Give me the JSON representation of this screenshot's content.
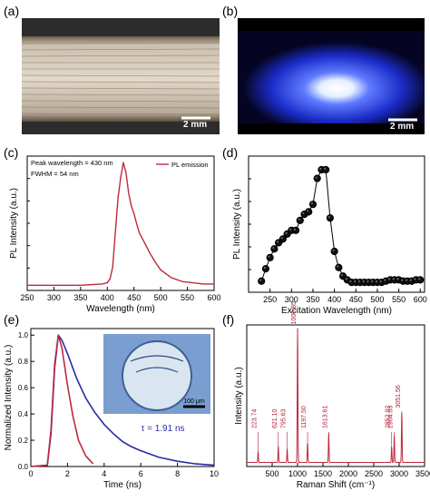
{
  "panel_labels": [
    "(a)",
    "(b)",
    "(c)",
    "(d)",
    "(e)",
    "(f)"
  ],
  "photo_a": {
    "scale_bar": "2 mm"
  },
  "photo_b": {
    "scale_bar": "2 mm"
  },
  "colors": {
    "red": "#c0283c",
    "blue": "#2a2aa8",
    "black": "#000000",
    "raman_label": "#b0203a"
  },
  "chart_data": [
    {
      "panel": "c",
      "type": "line",
      "xlabel": "Wavelength (nm)",
      "ylabel": "PL Intensity (a.u.)",
      "xlim": [
        250,
        600
      ],
      "xticks": [
        250,
        300,
        350,
        400,
        450,
        500,
        550,
        600
      ],
      "ylim": [
        0,
        1.05
      ],
      "annotations": [
        "Peak wavelength = 430 nm",
        "FWHM = 54 nm"
      ],
      "legend": "PL emission",
      "legend_position": "top-right",
      "series": [
        {
          "name": "PL emission",
          "color": "#c0283c",
          "x": [
            250,
            300,
            350,
            390,
            400,
            405,
            410,
            415,
            420,
            425,
            430,
            435,
            440,
            445,
            450,
            455,
            460,
            470,
            480,
            490,
            500,
            520,
            540,
            560,
            580,
            600
          ],
          "y": [
            0.04,
            0.04,
            0.04,
            0.05,
            0.06,
            0.09,
            0.18,
            0.45,
            0.72,
            0.88,
            1.0,
            0.92,
            0.76,
            0.66,
            0.6,
            0.52,
            0.45,
            0.37,
            0.29,
            0.22,
            0.16,
            0.1,
            0.07,
            0.06,
            0.05,
            0.05
          ]
        }
      ]
    },
    {
      "panel": "d",
      "type": "scatter",
      "xlabel": "Excitation Wavelength (nm)",
      "ylabel": "PL Intensity (a.u.)",
      "xlim": [
        200,
        610
      ],
      "xticks": [
        250,
        300,
        350,
        400,
        450,
        500,
        550,
        600
      ],
      "ylim": [
        0,
        1.1
      ],
      "series": [
        {
          "color": "#000000",
          "x": [
            230,
            240,
            250,
            260,
            270,
            280,
            290,
            300,
            310,
            320,
            330,
            340,
            350,
            360,
            370,
            380,
            390,
            400,
            410,
            420,
            430,
            440,
            450,
            460,
            470,
            480,
            490,
            500,
            510,
            520,
            530,
            540,
            550,
            560,
            570,
            580,
            590,
            600
          ],
          "y": [
            0.09,
            0.19,
            0.28,
            0.35,
            0.4,
            0.43,
            0.47,
            0.5,
            0.5,
            0.58,
            0.63,
            0.65,
            0.71,
            0.92,
            0.99,
            0.99,
            0.6,
            0.33,
            0.2,
            0.13,
            0.1,
            0.08,
            0.08,
            0.08,
            0.08,
            0.08,
            0.08,
            0.08,
            0.08,
            0.09,
            0.1,
            0.1,
            0.1,
            0.09,
            0.09,
            0.09,
            0.1,
            0.1
          ]
        }
      ]
    },
    {
      "panel": "e",
      "type": "line",
      "xlabel": "Time (ns)",
      "ylabel": "Normalized Intensity (a.u.)",
      "xlim": [
        0,
        10
      ],
      "xticks": [
        0,
        2,
        4,
        6,
        8,
        10
      ],
      "ylim": [
        0,
        1.05
      ],
      "yticks": [
        0.0,
        0.2,
        0.4,
        0.6,
        0.8,
        1.0
      ],
      "annotation": "τ = 1.91 ns",
      "inset_scale_bar": "100 μm",
      "series": [
        {
          "color": "#2a2aa8",
          "x": [
            0,
            0.9,
            1.1,
            1.3,
            1.5,
            1.7,
            2.0,
            2.5,
            3.0,
            3.5,
            4.0,
            4.5,
            5.0,
            5.5,
            6.0,
            7.0,
            8.0,
            9.0,
            10.0
          ],
          "y": [
            0,
            0.01,
            0.25,
            0.75,
            1.0,
            0.96,
            0.86,
            0.67,
            0.52,
            0.41,
            0.32,
            0.25,
            0.19,
            0.15,
            0.12,
            0.07,
            0.04,
            0.02,
            0.01
          ]
        },
        {
          "color": "#c0283c",
          "x": [
            0,
            0.9,
            1.1,
            1.3,
            1.5,
            1.7,
            2.0,
            2.3,
            2.6,
            3.0,
            3.4
          ],
          "y": [
            0,
            0.01,
            0.28,
            0.78,
            1.0,
            0.9,
            0.62,
            0.38,
            0.2,
            0.08,
            0.02
          ]
        }
      ]
    },
    {
      "panel": "f",
      "type": "line",
      "xlabel": "Raman Shift (cm⁻¹)",
      "ylabel": "Intensity (a.u.)",
      "xlim": [
        0,
        3500
      ],
      "xticks": [
        500,
        1000,
        1500,
        2000,
        2500,
        3000,
        3500
      ],
      "ylim": [
        0,
        1.05
      ],
      "peak_labels": [
        "223.74",
        "621.10",
        "795.63",
        "1000.85",
        "1197.50",
        "1613.61",
        "2852.02",
        "2904.03",
        "3051.56"
      ],
      "peaks": [
        {
          "x": 223.74,
          "y": 0.08
        },
        {
          "x": 621.1,
          "y": 0.12
        },
        {
          "x": 795.63,
          "y": 0.1
        },
        {
          "x": 1000.85,
          "y": 1.0
        },
        {
          "x": 1197.5,
          "y": 0.15
        },
        {
          "x": 1613.61,
          "y": 0.22
        },
        {
          "x": 2852.02,
          "y": 0.12
        },
        {
          "x": 2904.03,
          "y": 0.2
        },
        {
          "x": 3051.56,
          "y": 0.38
        }
      ],
      "series": [
        {
          "color": "#c0283c"
        }
      ]
    }
  ]
}
